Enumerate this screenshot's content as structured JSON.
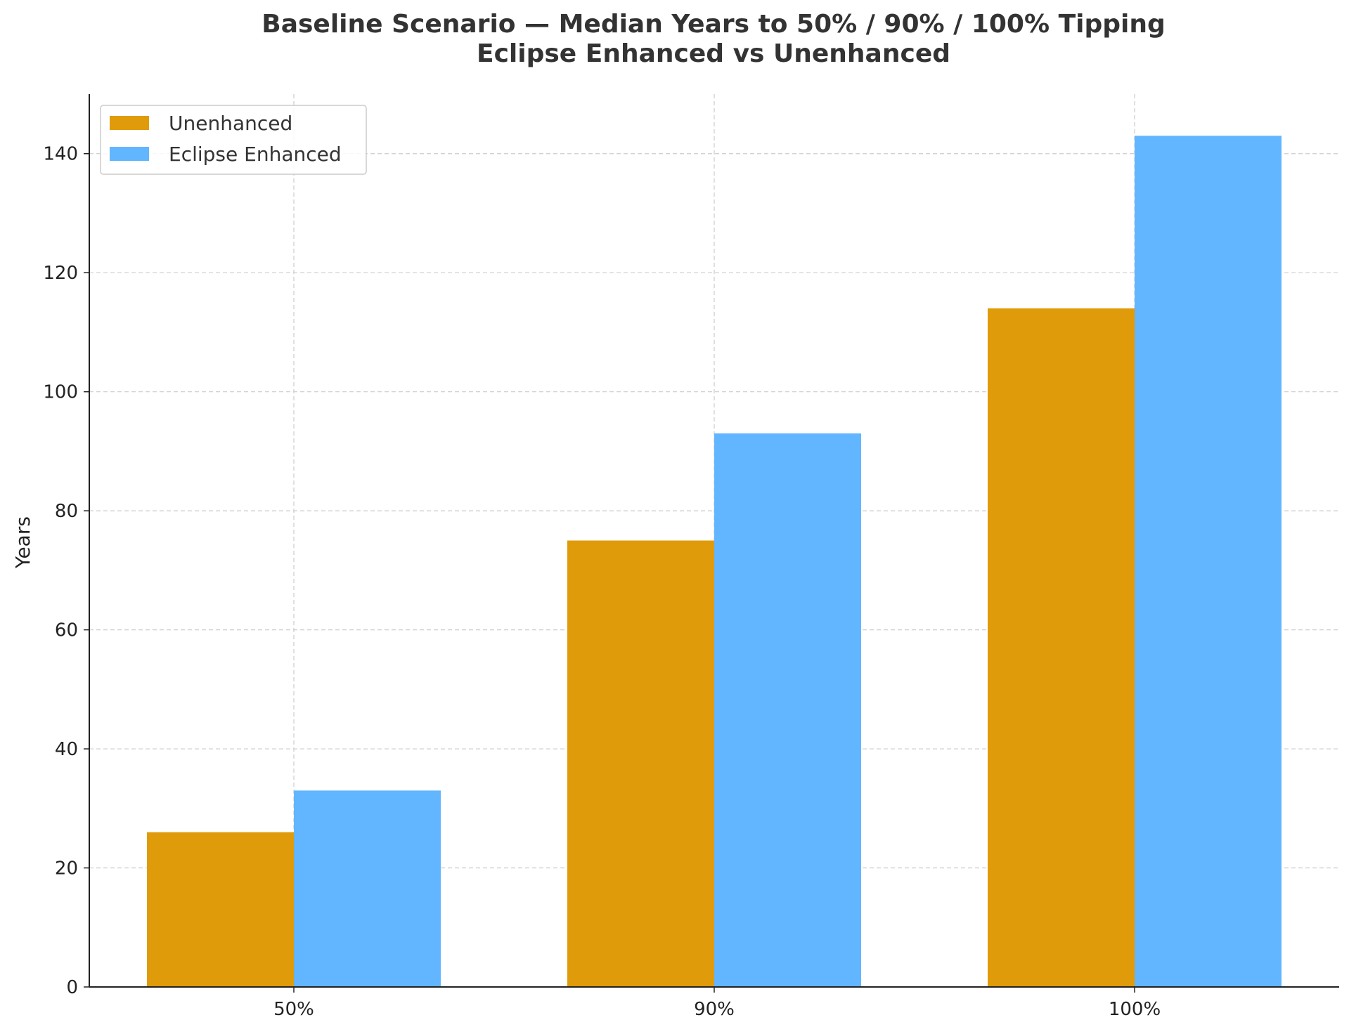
{
  "chart_data": {
    "type": "bar",
    "title": "Baseline Scenario — Median Years to 50% / 90% / 100% Tipping",
    "subtitle": "Eclipse Enhanced vs Unenhanced",
    "xlabel": "",
    "ylabel": "Years",
    "categories": [
      "50%",
      "90%",
      "100%"
    ],
    "series": [
      {
        "name": "Unenhanced",
        "values": [
          26,
          75,
          114
        ],
        "color": "#E09B0A"
      },
      {
        "name": "Eclipse Enhanced",
        "values": [
          33,
          93,
          143
        ],
        "color": "#61B6FF"
      }
    ],
    "ylim": [
      0,
      150
    ],
    "yticks": [
      0,
      20,
      40,
      60,
      80,
      100,
      120,
      140
    ],
    "grid": true,
    "legend": "top-left"
  }
}
